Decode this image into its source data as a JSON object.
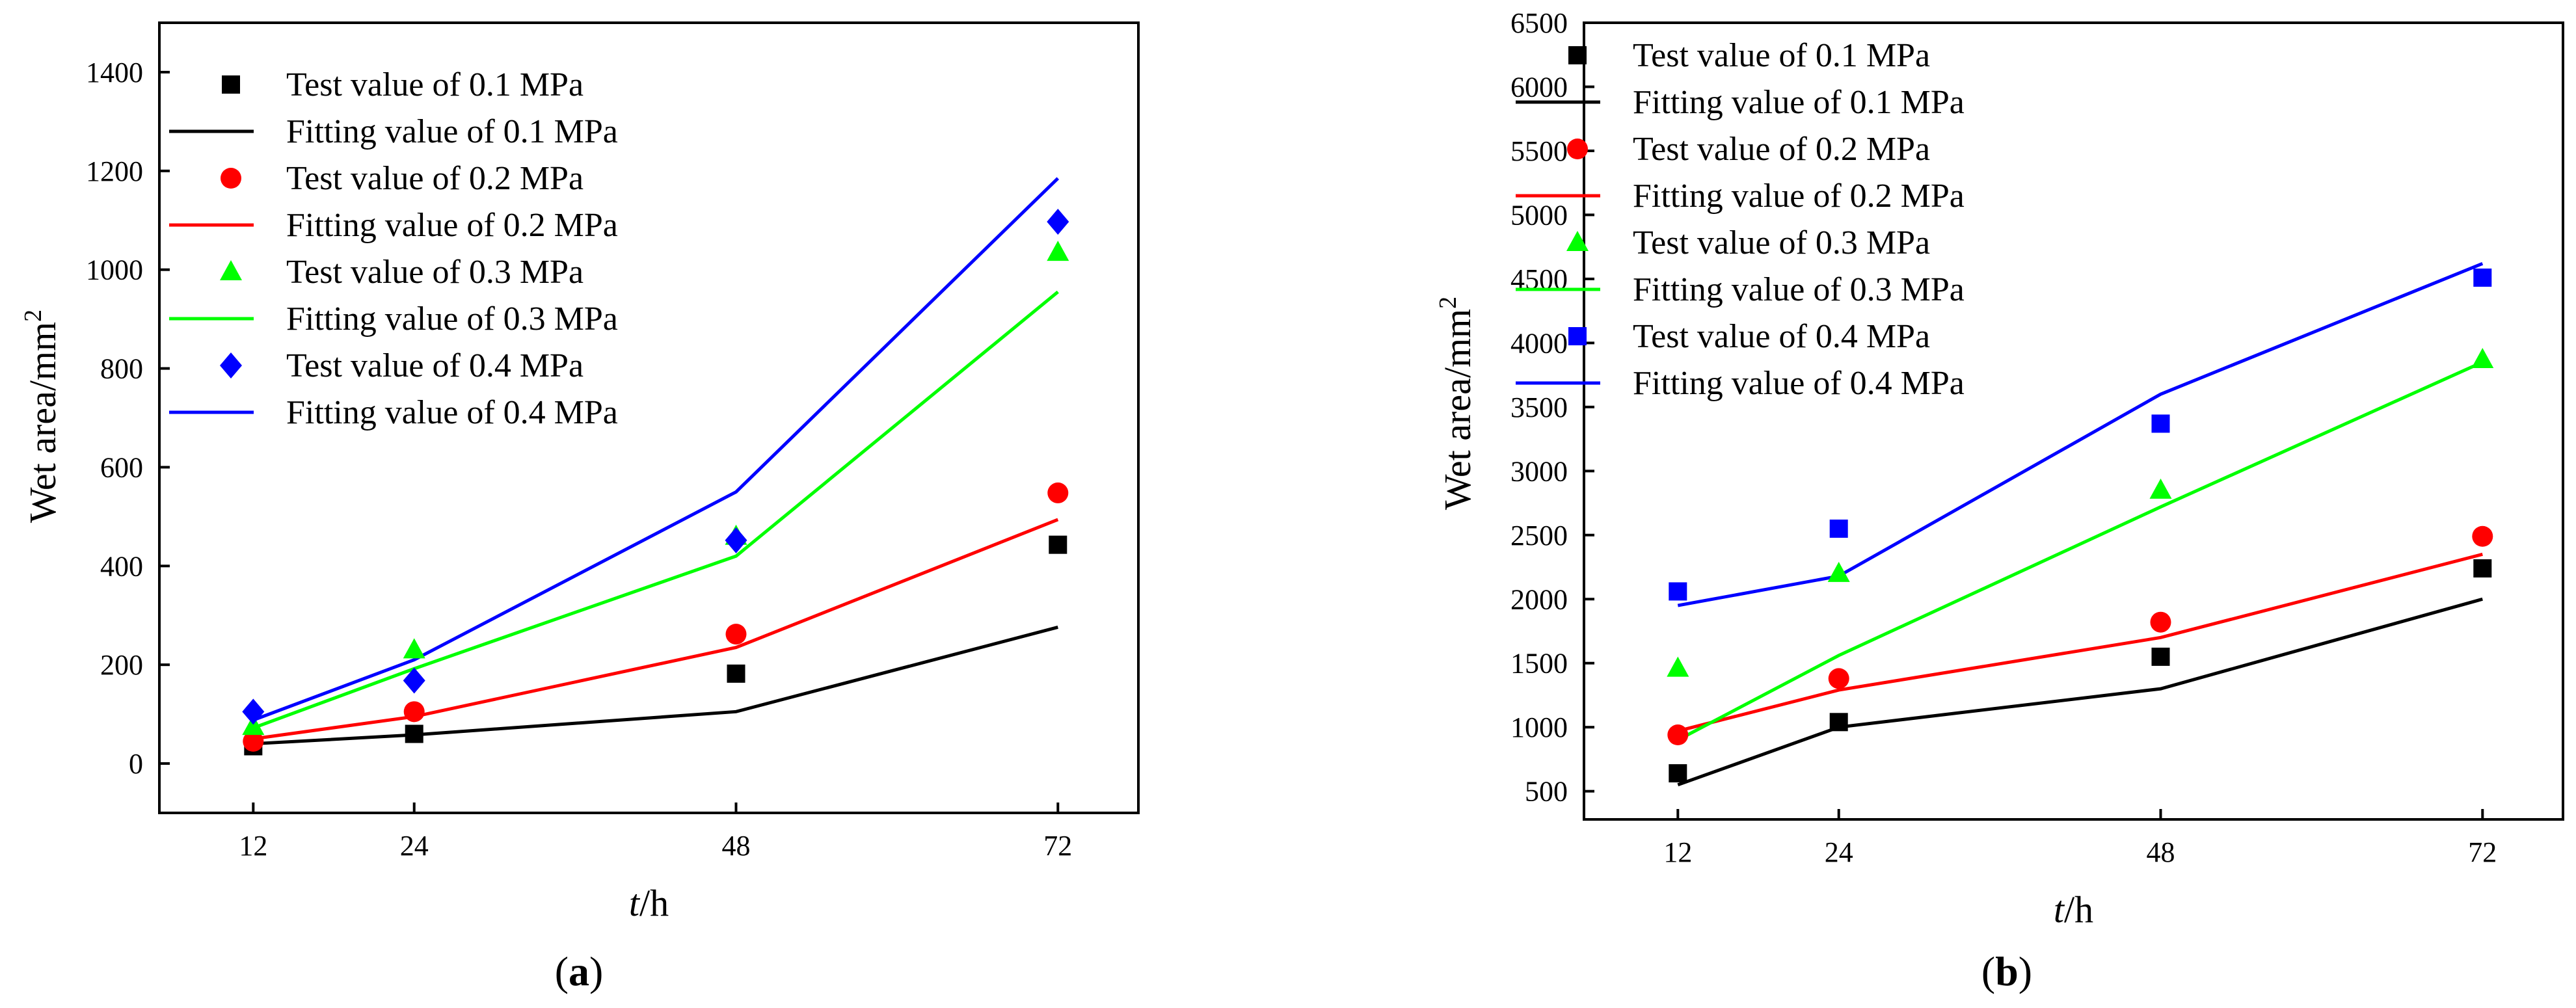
{
  "chart_data": [
    {
      "type": "line",
      "panel_label": {
        "open": "(",
        "letter": "a",
        "close": ")"
      },
      "xlabel": {
        "main": "t",
        "unit": "/h"
      },
      "ylabel": {
        "main": "Wet area/mm",
        "sup": "2"
      },
      "x": [
        12,
        24,
        48,
        72
      ],
      "xticks": [
        12,
        24,
        48,
        72
      ],
      "xlim": [
        5,
        78
      ],
      "ylim": [
        -100,
        1500
      ],
      "yticks": [
        0,
        200,
        400,
        600,
        800,
        1000,
        1200,
        1400
      ],
      "legend_position": "top-left",
      "series": [
        {
          "name": "Test value of 0.1 MPa",
          "kind": "marker",
          "marker": "square",
          "color": "#000000",
          "values": [
            35,
            60,
            182,
            443
          ]
        },
        {
          "name": "Fitting value of 0.1 MPa",
          "kind": "line",
          "color": "#000000",
          "values": [
            40,
            58,
            105,
            276
          ]
        },
        {
          "name": "Test value of 0.2 MPa",
          "kind": "marker",
          "marker": "circle",
          "color": "#ff0000",
          "values": [
            45,
            105,
            262,
            548
          ]
        },
        {
          "name": "Fitting value of 0.2 MPa",
          "kind": "line",
          "color": "#ff0000",
          "values": [
            50,
            95,
            235,
            494
          ]
        },
        {
          "name": "Test value of 0.3 MPa",
          "kind": "marker",
          "marker": "triangle",
          "color": "#00ff00",
          "values": [
            75,
            230,
            460,
            1035
          ]
        },
        {
          "name": "Fitting value of 0.3 MPa",
          "kind": "line",
          "color": "#00ff00",
          "values": [
            72,
            192,
            420,
            955
          ]
        },
        {
          "name": "Test value of 0.4 MPa",
          "kind": "marker",
          "marker": "diamond",
          "color": "#0000ff",
          "values": [
            105,
            168,
            452,
            1097
          ]
        },
        {
          "name": "Fitting value of 0.4 MPa",
          "kind": "line",
          "color": "#0000ff",
          "values": [
            88,
            210,
            550,
            1185
          ]
        }
      ]
    },
    {
      "type": "line",
      "panel_label": {
        "open": "(",
        "letter": "b",
        "close": ")"
      },
      "xlabel": {
        "main": "t",
        "unit": "/h"
      },
      "ylabel": {
        "main": "Wet area/mm",
        "sup": "2"
      },
      "x": [
        12,
        24,
        48,
        72
      ],
      "xticks": [
        12,
        24,
        48,
        72
      ],
      "xlim": [
        5,
        78
      ],
      "ylim": [
        280,
        6500
      ],
      "yticks": [
        500,
        1000,
        1500,
        2000,
        2500,
        3000,
        3500,
        4000,
        4500,
        5000,
        5500,
        6000,
        6500
      ],
      "legend_position": "top-left",
      "series": [
        {
          "name": "Test value of 0.1 MPa",
          "kind": "marker",
          "marker": "square",
          "color": "#000000",
          "values": [
            640,
            1040,
            1550,
            2240
          ]
        },
        {
          "name": "Fitting value of 0.1 MPa",
          "kind": "line",
          "color": "#000000",
          "values": [
            550,
            1000,
            1300,
            2000
          ]
        },
        {
          "name": "Test value of 0.2 MPa",
          "kind": "marker",
          "marker": "circle",
          "color": "#ff0000",
          "values": [
            940,
            1380,
            1820,
            2490
          ]
        },
        {
          "name": "Fitting value of 0.2 MPa",
          "kind": "line",
          "color": "#ff0000",
          "values": [
            970,
            1290,
            1700,
            2350
          ]
        },
        {
          "name": "Test value of 0.3 MPa",
          "kind": "marker",
          "marker": "triangle",
          "color": "#00ff00",
          "values": [
            1460,
            2200,
            2850,
            3870
          ]
        },
        {
          "name": "Fitting value of 0.3 MPa",
          "kind": "line",
          "color": "#00ff00",
          "values": [
            900,
            1560,
            2720,
            3850
          ]
        },
        {
          "name": "Test value of 0.4 MPa",
          "kind": "marker",
          "marker": "square",
          "color": "#0000ff",
          "values": [
            2060,
            2550,
            3370,
            4510
          ]
        },
        {
          "name": "Fitting value of 0.4 MPa",
          "kind": "line",
          "color": "#0000ff",
          "values": [
            1950,
            2180,
            3600,
            4620
          ]
        }
      ]
    }
  ]
}
